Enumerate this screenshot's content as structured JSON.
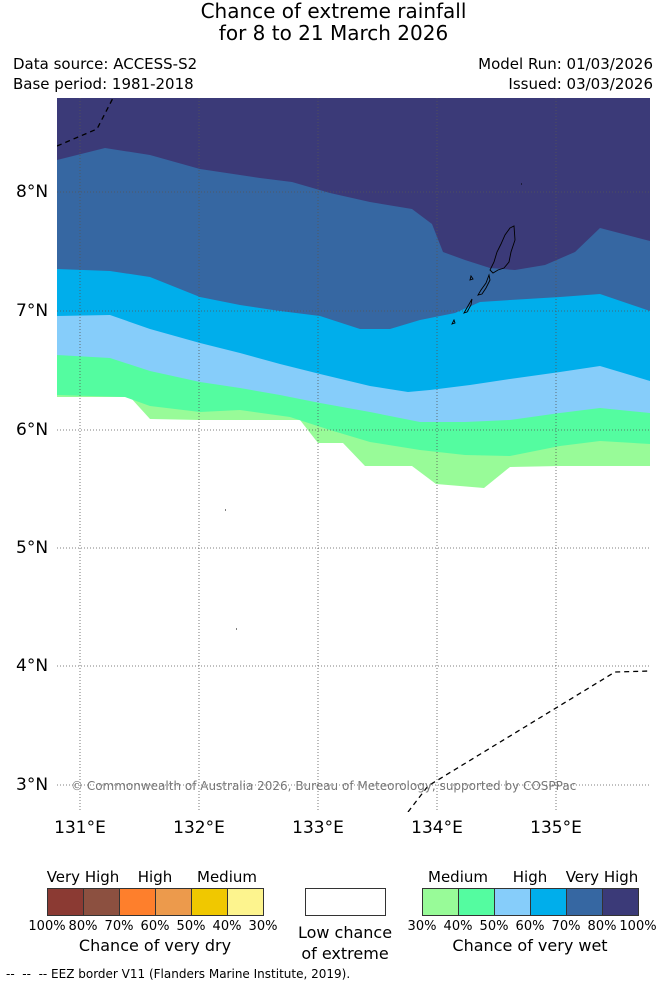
{
  "title": {
    "line1": "Chance of extreme rainfall",
    "line2": "for 8 to 21 March 2026"
  },
  "info": {
    "data_source": "Data source: ACCESS-S2",
    "base_period": "Base period: 1981-2018",
    "model_run": "Model Run: 01/03/2026",
    "issued": "Issued: 03/03/2026"
  },
  "map": {
    "lat_labels": [
      "8°N",
      "7°N",
      "6°N",
      "5°N",
      "4°N",
      "3°N"
    ],
    "lon_labels": [
      "131°E",
      "132°E",
      "133°E",
      "134°E",
      "135°E"
    ],
    "copyright": "© Commonwealth of Australia 2026, Bureau of Meteorology, supported by COSPPac"
  },
  "colors": {
    "dry_very_high_100": "#8b3a33",
    "dry_very_high_80": "#8c5040",
    "dry_high_70": "#fe7f2c",
    "dry_high_60": "#ec9a4c",
    "dry_medium_50": "#f0c800",
    "dry_medium_40": "#fdf48e",
    "wet_medium_30": "#98fb98",
    "wet_medium_40": "#54fca0",
    "wet_high_50": "#86cdfa",
    "wet_high_60": "#00aeeb",
    "wet_very_high_70": "#3667a2",
    "wet_very_high_80": "#3b3a78"
  },
  "legend": {
    "dry": {
      "categories": [
        "Very High",
        "High",
        "Medium"
      ],
      "percents": [
        "100%",
        "80%",
        "70%",
        "60%",
        "50%",
        "40%",
        "30%"
      ],
      "caption": "Chance of very dry"
    },
    "neutral": {
      "caption_line1": "Low chance",
      "caption_line2": "of extreme"
    },
    "wet": {
      "categories": [
        "Medium",
        "High",
        "Very High"
      ],
      "percents": [
        "30%",
        "40%",
        "50%",
        "60%",
        "70%",
        "80%",
        "100%"
      ],
      "caption": "Chance of very wet"
    }
  },
  "footer": {
    "eez_note": "--  --  -- EEZ border V11 (Flanders Marine Institute, 2019)."
  }
}
